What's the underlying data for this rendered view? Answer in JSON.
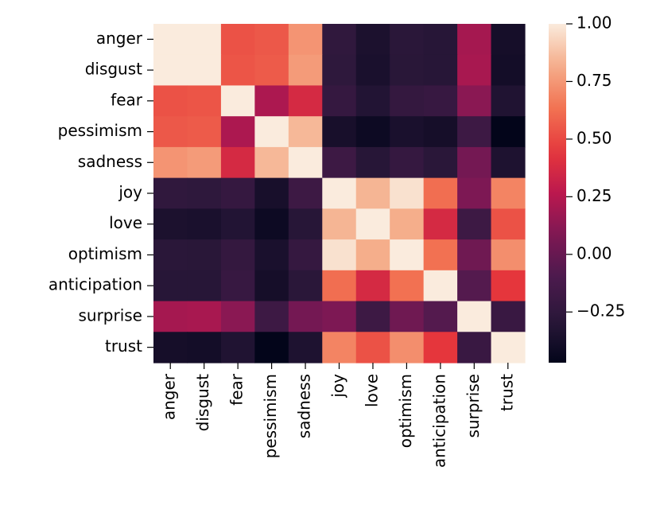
{
  "chart_data": {
    "type": "heatmap",
    "title": "",
    "xlabel": "",
    "ylabel": "",
    "rows": [
      "anger",
      "disgust",
      "fear",
      "pessimism",
      "sadness",
      "joy",
      "love",
      "optimism",
      "anticipation",
      "surprise",
      "trust"
    ],
    "columns": [
      "anger",
      "disgust",
      "fear",
      "pessimism",
      "sadness",
      "joy",
      "love",
      "optimism",
      "anticipation",
      "surprise",
      "trust"
    ],
    "values": [
      [
        1.0,
        1.0,
        0.53,
        0.55,
        0.74,
        -0.25,
        -0.35,
        -0.28,
        -0.3,
        0.2,
        -0.38
      ],
      [
        1.0,
        1.0,
        0.54,
        0.56,
        0.76,
        -0.26,
        -0.36,
        -0.29,
        -0.3,
        0.21,
        -0.39
      ],
      [
        0.53,
        0.54,
        1.0,
        0.22,
        0.37,
        -0.22,
        -0.32,
        -0.23,
        -0.21,
        0.12,
        -0.33
      ],
      [
        0.55,
        0.56,
        0.22,
        1.0,
        0.85,
        -0.37,
        -0.42,
        -0.36,
        -0.38,
        -0.18,
        -0.47
      ],
      [
        0.74,
        0.76,
        0.37,
        0.85,
        1.0,
        -0.18,
        -0.3,
        -0.22,
        -0.28,
        0.05,
        -0.34
      ],
      [
        -0.25,
        -0.26,
        -0.22,
        -0.37,
        -0.18,
        1.0,
        0.84,
        0.97,
        0.62,
        0.08,
        0.69
      ],
      [
        -0.35,
        -0.36,
        -0.32,
        -0.42,
        -0.3,
        0.84,
        1.0,
        0.82,
        0.37,
        -0.18,
        0.53
      ],
      [
        -0.28,
        -0.29,
        -0.23,
        -0.36,
        -0.22,
        0.97,
        0.82,
        1.0,
        0.63,
        0.03,
        0.72
      ],
      [
        -0.3,
        -0.3,
        -0.21,
        -0.38,
        -0.28,
        0.62,
        0.37,
        0.63,
        1.0,
        -0.07,
        0.44
      ],
      [
        0.2,
        0.21,
        0.12,
        -0.18,
        0.05,
        0.08,
        -0.18,
        0.03,
        -0.07,
        1.0,
        -0.2
      ],
      [
        -0.38,
        -0.39,
        -0.33,
        -0.47,
        -0.34,
        0.69,
        0.53,
        0.72,
        0.44,
        -0.2,
        1.0
      ]
    ],
    "vmin": -0.47,
    "vmax": 1.0,
    "colormap": "rocket",
    "colorbar_ticks": [
      {
        "value": 1.0,
        "label": "1.00"
      },
      {
        "value": 0.75,
        "label": "0.75"
      },
      {
        "value": 0.5,
        "label": "0.50"
      },
      {
        "value": 0.25,
        "label": "0.25"
      },
      {
        "value": 0.0,
        "label": "0.00"
      },
      {
        "value": -0.25,
        "label": "−0.25"
      }
    ],
    "grid": false,
    "legend": "colorbar-right"
  }
}
